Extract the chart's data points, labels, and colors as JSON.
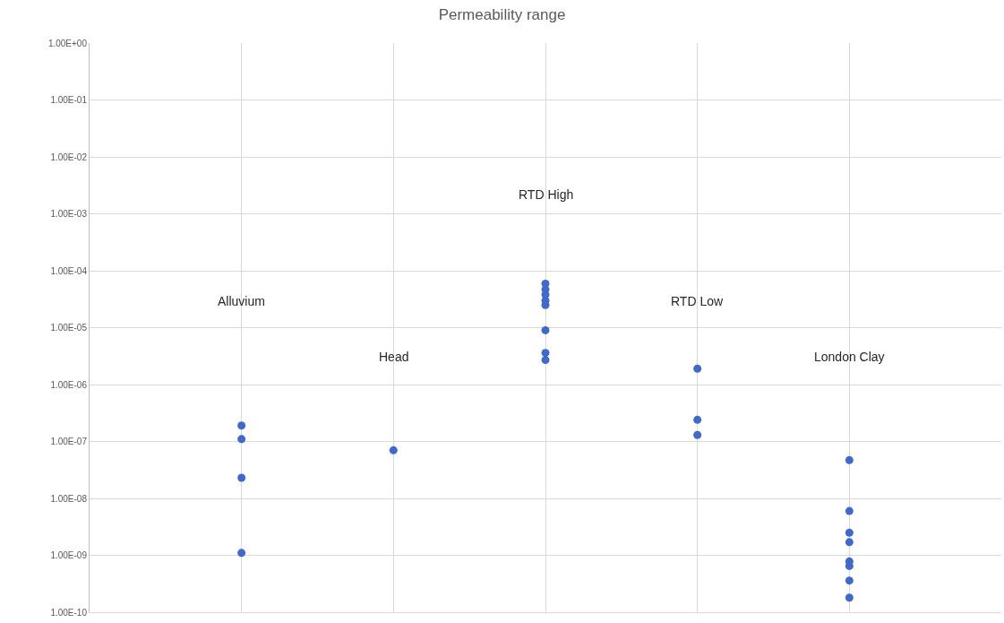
{
  "chart_data": {
    "type": "scatter",
    "title": "Permeability range",
    "log": "y",
    "grid": true,
    "marker": "circle",
    "categories": [
      "Alluvium",
      "Head",
      "RTD High",
      "RTD Low",
      "London Clay"
    ],
    "ylim": [
      1e-10,
      1
    ],
    "yticks": [
      {
        "value": 1,
        "label": "1.00E+00"
      },
      {
        "value": 0.1,
        "label": "1.00E-01"
      },
      {
        "value": 0.01,
        "label": "1.00E-02"
      },
      {
        "value": 0.001,
        "label": "1.00E-03"
      },
      {
        "value": 0.0001,
        "label": "1.00E-04"
      },
      {
        "value": 1e-05,
        "label": "1.00E-05"
      },
      {
        "value": 1e-06,
        "label": "1.00E-06"
      },
      {
        "value": 1e-07,
        "label": "1.00E-07"
      },
      {
        "value": 1e-08,
        "label": "1.00E-08"
      },
      {
        "value": 1e-09,
        "label": "1.00E-09"
      },
      {
        "value": 1e-10,
        "label": "1.00E-10"
      }
    ],
    "series": [
      {
        "color": "#4169c8",
        "x": [
          "Alluvium",
          "Alluvium",
          "Alluvium",
          "Alluvium",
          "Head",
          "RTD High",
          "RTD High",
          "RTD High",
          "RTD High",
          "RTD High",
          "RTD High",
          "RTD High",
          "RTD High",
          "RTD Low",
          "RTD Low",
          "RTD Low",
          "London Clay",
          "London Clay",
          "London Clay",
          "London Clay",
          "London Clay",
          "London Clay",
          "London Clay",
          "London Clay"
        ],
        "values": [
          1.9e-07,
          1.1e-07,
          2.3e-08,
          1.1e-09,
          7e-08,
          5.9e-05,
          4.7e-05,
          3.8e-05,
          3e-05,
          2.5e-05,
          9e-06,
          3.6e-06,
          2.7e-06,
          1.9e-06,
          2.4e-07,
          1.3e-07,
          4.7e-08,
          6e-09,
          2.5e-09,
          1.7e-09,
          7.8e-10,
          6.5e-10,
          3.6e-10,
          1.8e-10
        ]
      }
    ]
  }
}
